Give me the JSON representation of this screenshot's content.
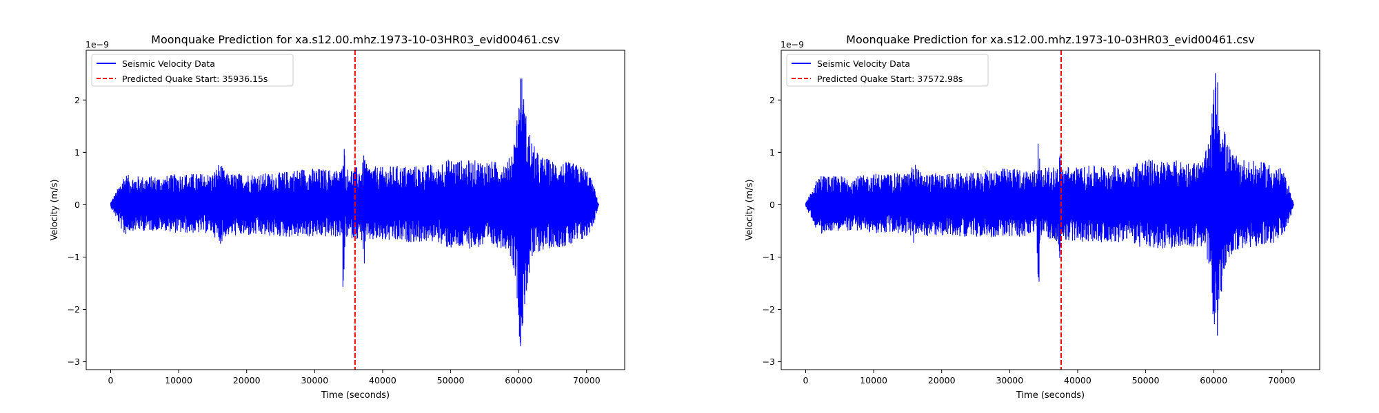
{
  "chart_data": [
    {
      "type": "line",
      "title": "Moonquake Prediction for xa.s12.00.mhz.1973-10-03HR03_evid00461.csv",
      "xlabel": "Time (seconds)",
      "ylabel": "Velocity (m/s)",
      "y_offset_label": "1e−9",
      "xlim": [
        -3600,
        75600
      ],
      "ylim": [
        -3.15,
        2.95
      ],
      "xticks": [
        0,
        10000,
        20000,
        30000,
        40000,
        50000,
        60000,
        70000
      ],
      "xtick_labels": [
        "0",
        "10000",
        "20000",
        "30000",
        "40000",
        "50000",
        "60000",
        "70000"
      ],
      "yticks": [
        -3,
        -2,
        -1,
        0,
        1,
        2
      ],
      "ytick_labels": [
        "−3",
        "−2",
        "−1",
        "0",
        "1",
        "2"
      ],
      "grid": false,
      "legend_position": "top-left",
      "series": [
        {
          "name": "Seismic Velocity Data",
          "color": "#0000ff",
          "style": "solid",
          "envelope_x": [
            0,
            1000,
            2000,
            3000,
            5000,
            8000,
            10000,
            12000,
            15000,
            16000,
            17000,
            20000,
            22000,
            25000,
            28000,
            30000,
            32000,
            34000,
            34200,
            34500,
            35000,
            36000,
            37000,
            37300,
            37600,
            38000,
            40000,
            42000,
            45000,
            47500,
            47800,
            48500,
            50000,
            52000,
            55000,
            57000,
            58500,
            59500,
            60000,
            60300,
            60600,
            61000,
            62000,
            63000,
            65000,
            68000,
            69000,
            70000,
            71000,
            71800
          ],
          "envelope_upper": [
            0.05,
            0.3,
            0.6,
            0.55,
            0.55,
            0.55,
            0.6,
            0.6,
            0.6,
            0.82,
            0.6,
            0.6,
            0.6,
            0.62,
            0.7,
            0.7,
            0.68,
            0.68,
            1.72,
            0.7,
            0.7,
            0.72,
            0.75,
            1.05,
            0.78,
            0.75,
            0.72,
            0.75,
            0.75,
            0.78,
            0.6,
            0.85,
            0.88,
            0.85,
            0.85,
            0.82,
            0.85,
            1.35,
            2.2,
            2.62,
            2.4,
            1.8,
            1.2,
            0.95,
            0.85,
            0.8,
            0.75,
            0.7,
            0.4,
            0.0
          ],
          "envelope_lower": [
            -0.05,
            -0.3,
            -0.6,
            -0.5,
            -0.5,
            -0.5,
            -0.55,
            -0.55,
            -0.55,
            -0.78,
            -0.6,
            -0.6,
            -0.6,
            -0.62,
            -0.62,
            -0.62,
            -0.62,
            -0.62,
            -2.13,
            -0.62,
            -0.65,
            -0.65,
            -0.7,
            -1.22,
            -0.72,
            -0.7,
            -0.7,
            -0.72,
            -0.72,
            -0.72,
            -0.6,
            -0.8,
            -0.85,
            -0.85,
            -0.82,
            -0.82,
            -0.85,
            -1.35,
            -2.3,
            -2.85,
            -2.5,
            -1.8,
            -1.1,
            -0.9,
            -0.82,
            -0.8,
            -0.72,
            -0.65,
            -0.4,
            0.0
          ]
        },
        {
          "name": "Predicted Quake Start: 35936.15s",
          "color": "#ff0000",
          "style": "dashed",
          "x": 35936.15
        }
      ]
    },
    {
      "type": "line",
      "title": "Moonquake Prediction for xa.s12.00.mhz.1973-10-03HR03_evid00461.csv",
      "xlabel": "Time (seconds)",
      "ylabel": "Velocity (m/s)",
      "y_offset_label": "1e−9",
      "xlim": [
        -3600,
        75600
      ],
      "ylim": [
        -3.15,
        2.95
      ],
      "xticks": [
        0,
        10000,
        20000,
        30000,
        40000,
        50000,
        60000,
        70000
      ],
      "xtick_labels": [
        "0",
        "10000",
        "20000",
        "30000",
        "40000",
        "50000",
        "60000",
        "70000"
      ],
      "yticks": [
        -3,
        -2,
        -1,
        0,
        1,
        2
      ],
      "ytick_labels": [
        "−3",
        "−2",
        "−1",
        "0",
        "1",
        "2"
      ],
      "grid": false,
      "legend_position": "top-left",
      "series": [
        {
          "name": "Seismic Velocity Data",
          "color": "#0000ff",
          "style": "solid",
          "envelope_x": [
            0,
            1000,
            2000,
            3000,
            5000,
            8000,
            10000,
            12000,
            15000,
            16000,
            17000,
            20000,
            22000,
            25000,
            28000,
            30000,
            32000,
            34000,
            34200,
            34500,
            35000,
            36000,
            37000,
            37300,
            37600,
            38000,
            40000,
            42000,
            45000,
            47500,
            47800,
            48500,
            50000,
            52000,
            55000,
            57000,
            58500,
            59500,
            60000,
            60300,
            60600,
            61000,
            62000,
            63000,
            65000,
            68000,
            69000,
            70000,
            71000,
            71800
          ],
          "envelope_upper": [
            0.05,
            0.3,
            0.6,
            0.55,
            0.55,
            0.55,
            0.6,
            0.6,
            0.6,
            0.82,
            0.6,
            0.6,
            0.6,
            0.62,
            0.7,
            0.7,
            0.68,
            0.68,
            1.72,
            0.7,
            0.7,
            0.72,
            0.75,
            1.05,
            0.78,
            0.75,
            0.72,
            0.75,
            0.75,
            0.78,
            0.6,
            0.85,
            0.88,
            0.85,
            0.85,
            0.82,
            0.85,
            1.35,
            2.2,
            2.62,
            2.4,
            1.8,
            1.2,
            0.95,
            0.85,
            0.8,
            0.75,
            0.7,
            0.4,
            0.0
          ],
          "envelope_lower": [
            -0.05,
            -0.3,
            -0.6,
            -0.5,
            -0.5,
            -0.5,
            -0.55,
            -0.55,
            -0.55,
            -0.78,
            -0.6,
            -0.6,
            -0.6,
            -0.62,
            -0.62,
            -0.62,
            -0.62,
            -0.62,
            -2.13,
            -0.62,
            -0.65,
            -0.65,
            -0.7,
            -1.22,
            -0.72,
            -0.7,
            -0.7,
            -0.72,
            -0.72,
            -0.72,
            -0.6,
            -0.8,
            -0.85,
            -0.85,
            -0.82,
            -0.82,
            -0.85,
            -1.35,
            -2.3,
            -2.85,
            -2.5,
            -1.8,
            -1.1,
            -0.9,
            -0.82,
            -0.8,
            -0.72,
            -0.65,
            -0.4,
            0.0
          ]
        },
        {
          "name": "Predicted Quake Start: 37572.98s",
          "color": "#ff0000",
          "style": "dashed",
          "x": 37572.98
        }
      ]
    }
  ]
}
